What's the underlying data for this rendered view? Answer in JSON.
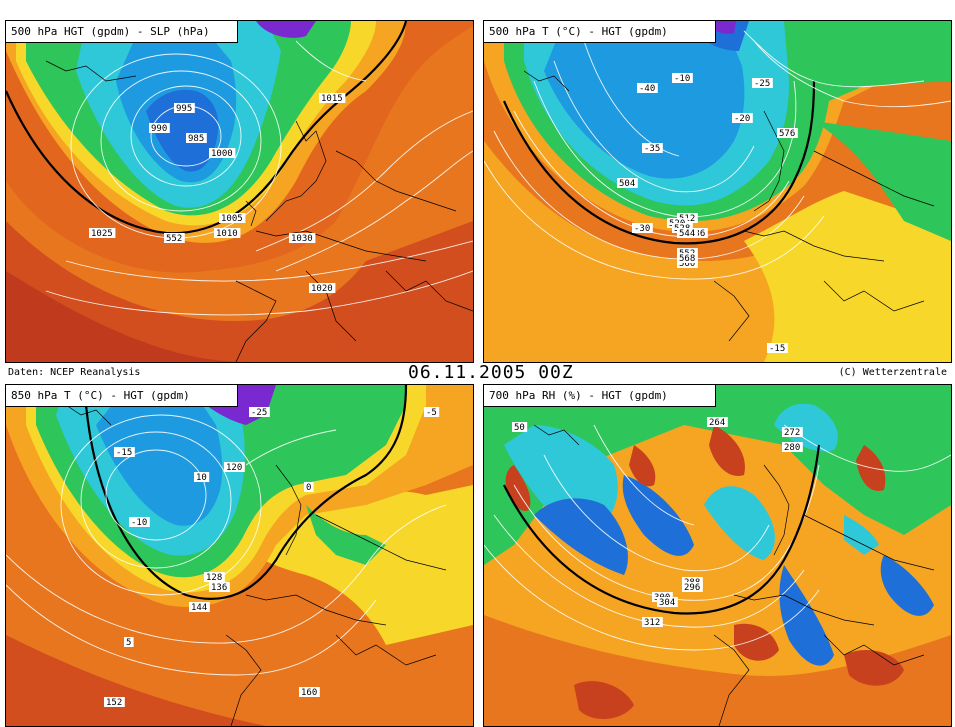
{
  "footer": {
    "source": "Daten: NCEP Reanalysis",
    "date": "06.11.2005 00Z",
    "copyright": "(C) Wetterzentrale"
  },
  "panels": [
    {
      "title": "500 hPa HGT (gpdm) - SLP (hPa)",
      "style": "warm",
      "labels": [
        "985",
        "990",
        "995",
        "1000",
        "1005",
        "1010",
        "1015",
        "1020",
        "1025",
        "1030",
        "552"
      ]
    },
    {
      "title": "500 hPa T (°C) - HGT (gpdm)",
      "style": "warm",
      "labels": [
        "-40",
        "-35",
        "-30",
        "-25",
        "-20",
        "-15",
        "-10",
        "504",
        "512",
        "520",
        "528",
        "536",
        "544",
        "552",
        "560",
        "568",
        "576"
      ]
    },
    {
      "title": "850 hPa T (°C) - HGT (gpdm)",
      "style": "warm",
      "labels": [
        "-25",
        "-15",
        "-10",
        "-5",
        "0",
        "5",
        "10",
        "120",
        "128",
        "136",
        "144",
        "152",
        "160"
      ]
    },
    {
      "title": "700 hPa RH (%) - HGT (gpdm)",
      "style": "rh",
      "labels": [
        "50",
        "264",
        "272",
        "280",
        "288",
        "296",
        "300",
        "304",
        "312"
      ]
    }
  ],
  "colors": {
    "deep_red": "#c8411e",
    "orange": "#e8731e",
    "light_orange": "#f5a623",
    "yellow": "#f7d82a",
    "green": "#2ec55a",
    "cyan": "#2ec8d8",
    "blue": "#1e6fd8",
    "violet": "#7a28d0"
  }
}
